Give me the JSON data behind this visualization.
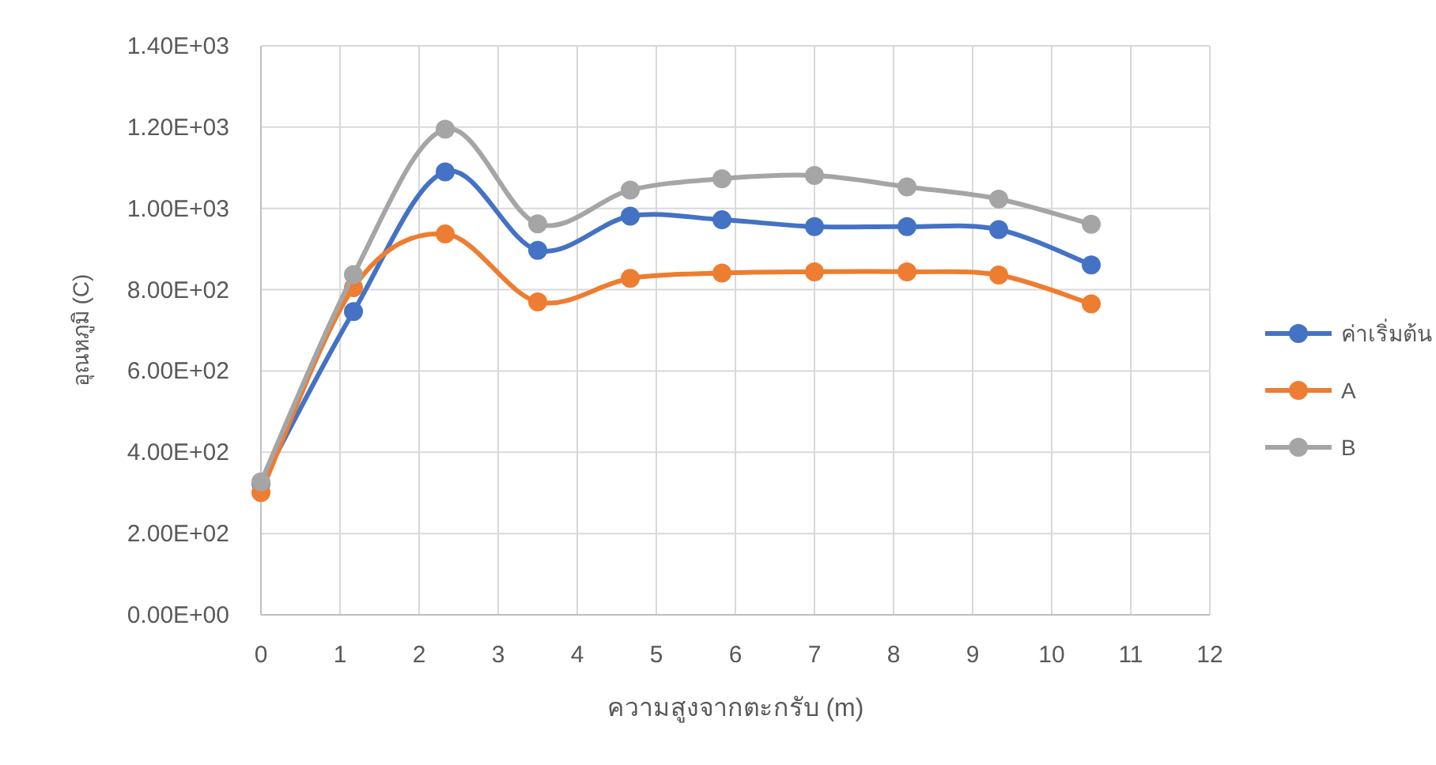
{
  "chart_data": {
    "type": "line",
    "xlabel": "ความสูงจากตะกรับ (m)",
    "ylabel": "อุณหภูมิ (C)",
    "x": [
      0,
      1.17,
      2.33,
      3.5,
      4.67,
      5.83,
      7,
      8.17,
      9.33,
      10.5
    ],
    "series": [
      {
        "name": "ค่าเริ่มต้น",
        "color": "#4472c4",
        "values": [
          323,
          746,
          1090,
          897,
          981,
          972,
          955,
          955,
          948,
          861
        ]
      },
      {
        "name": "A",
        "color": "#ed7d31",
        "values": [
          301,
          805,
          937,
          770,
          828,
          841,
          844,
          844,
          836,
          765
        ]
      },
      {
        "name": "B",
        "color": "#a5a5a5",
        "values": [
          327,
          837,
          1195,
          962,
          1045,
          1073,
          1081,
          1053,
          1023,
          961
        ]
      }
    ],
    "xlim": [
      0,
      12
    ],
    "xticks": [
      0,
      1,
      2,
      3,
      4,
      5,
      6,
      7,
      8,
      9,
      10,
      11,
      12
    ],
    "ylim": [
      0,
      1400
    ],
    "yticks": [
      {
        "value": 0,
        "label": "0.00E+00"
      },
      {
        "value": 200,
        "label": "2.00E+02"
      },
      {
        "value": 400,
        "label": "4.00E+02"
      },
      {
        "value": 600,
        "label": "6.00E+02"
      },
      {
        "value": 800,
        "label": "8.00E+02"
      },
      {
        "value": 1000,
        "label": "1.00E+03"
      },
      {
        "value": 1200,
        "label": "1.20E+03"
      },
      {
        "value": 1400,
        "label": "1.40E+03"
      }
    ],
    "grid": true,
    "legend": "right",
    "marker": "circle",
    "line_style": "solid"
  }
}
